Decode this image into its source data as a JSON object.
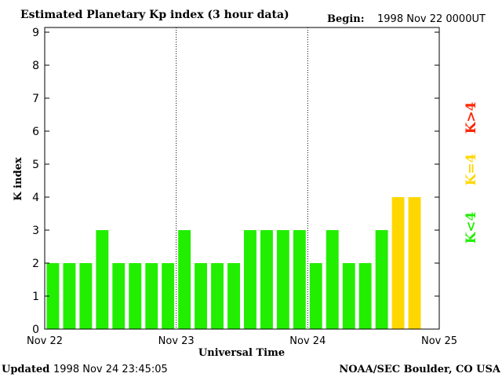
{
  "header": {
    "title": "Estimated Planetary Kp index (3 hour data)",
    "begin_label": "Begin:",
    "begin_value": "1998 Nov 22 0000UT"
  },
  "footer": {
    "updated_label": "Updated",
    "updated_value": "1998 Nov 24 23:45:05",
    "credit": "NOAA/SEC Boulder, CO USA"
  },
  "legend": [
    {
      "label": "K>4",
      "color": "#ff2200"
    },
    {
      "label": "K=4",
      "color": "#ffd700"
    },
    {
      "label": "K<4",
      "color": "#22ee00"
    }
  ],
  "chart_data": {
    "type": "bar",
    "ylabel": "K index",
    "xlabel": "Universal Time",
    "ylim": [
      0,
      9
    ],
    "yticks": [
      "0",
      "1",
      "2",
      "3",
      "4",
      "5",
      "6",
      "7",
      "8",
      "9"
    ],
    "x_day_labels": [
      "Nov 22",
      "Nov 23",
      "Nov 24",
      "Nov 25"
    ],
    "values": [
      2,
      2,
      2,
      3,
      2,
      2,
      2,
      2,
      3,
      2,
      2,
      2,
      3,
      3,
      3,
      3,
      2,
      3,
      2,
      2,
      3,
      4,
      4
    ],
    "colors": {
      "low": "#22ee00",
      "equal": "#ffd700",
      "high": "#ff2200"
    }
  }
}
